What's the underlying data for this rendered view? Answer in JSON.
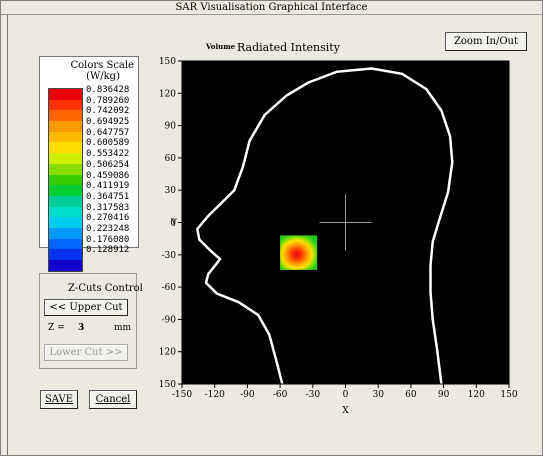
{
  "window": {
    "title": "SAR Visualisation Graphical Interface"
  },
  "colors_scale": {
    "title_line1": "Colors Scale",
    "title_line2": "(W/kg)",
    "colors": [
      "#e8000a",
      "#ff3300",
      "#ff6600",
      "#ff9900",
      "#ffbb00",
      "#ffdd00",
      "#ccee00",
      "#88dd00",
      "#33cc00",
      "#00cc33",
      "#00cc99",
      "#00ddcc",
      "#00ccee",
      "#0099ff",
      "#0066ff",
      "#0033ee",
      "#1100cc"
    ],
    "labels": [
      "0.836428",
      "0.789260",
      "0.742092",
      "0.694925",
      "0.647757",
      "0.600589",
      "0.553422",
      "0.506254",
      "0.459086",
      "0.411919",
      "0.364751",
      "0.317583",
      "0.270416",
      "0.223248",
      "0.176080",
      "0.128912"
    ]
  },
  "zcuts": {
    "title": "Z-Cuts Control",
    "upper_label": "<< Upper Cut",
    "z_label": "Z =",
    "z_value": "3",
    "z_unit": "mm",
    "lower_label": "Lower Cut >>"
  },
  "buttons": {
    "save": "SAVE",
    "cancel": "Cancel",
    "zoom": "Zoom In/Out"
  },
  "plot": {
    "mode_label": "Volume",
    "title": "Radiated Intensity",
    "xlabel": "X",
    "ylabel": "Y",
    "x_ticks": [
      "-150",
      "-120",
      "-90",
      "-60",
      "-30",
      "0",
      "30",
      "60",
      "90",
      "120",
      "150"
    ],
    "y_ticks": [
      "150",
      "120",
      "90",
      "60",
      "30",
      "0",
      "-30",
      "-60",
      "-90",
      "-120",
      "-150"
    ],
    "background_color": "#000000",
    "outline_color": "#ffffff"
  },
  "chart_data": {
    "type": "heatmap",
    "title": "Radiated Intensity",
    "xlabel": "X",
    "ylabel": "Y",
    "xlim": [
      -150,
      150
    ],
    "ylim": [
      -150,
      150
    ],
    "hotspot": {
      "x_range": [
        -60,
        -26
      ],
      "y_range": [
        -44,
        -12
      ],
      "peak": [
        -43,
        -28
      ]
    },
    "crosshair": [
      0,
      0
    ],
    "grid": false,
    "legend": "none"
  }
}
